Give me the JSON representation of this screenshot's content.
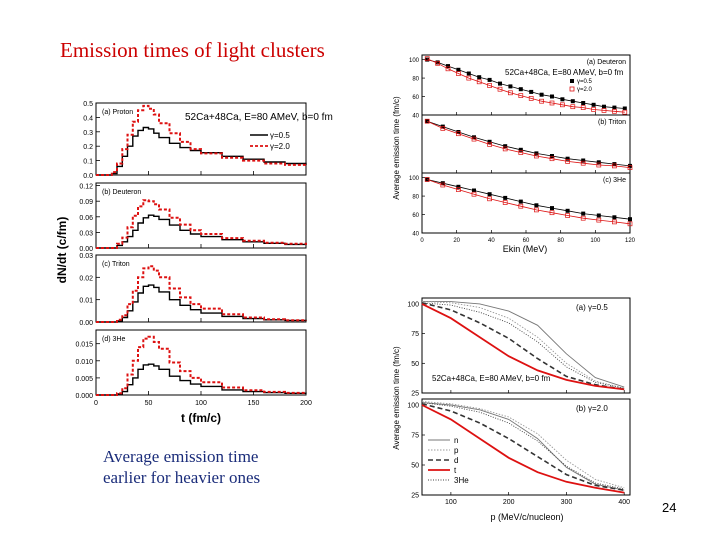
{
  "slide": {
    "title": "Emission times of light clusters",
    "caption_line1": "Average emission time",
    "caption_line2": "earlier for heavier ones",
    "page_number": "24"
  },
  "colors": {
    "title": "#cc0000",
    "caption": "#1a2c7a",
    "red": "#dd1111",
    "black": "#000000"
  },
  "chart_data": [
    {
      "type": "line",
      "title": "52Ca+48Ca, E=80 AMeV, b=0 fm",
      "xlabel": "t (fm/c)",
      "ylabel": "dN/dt (c/fm)",
      "legend": [
        "γ=0.5",
        "γ=2.0"
      ],
      "xlim": [
        0,
        200
      ],
      "x_ticks": [
        "0",
        "50",
        "100",
        "150",
        "200"
      ],
      "panels": [
        {
          "label": "(a) Proton",
          "ylim": [
            0,
            0.5
          ],
          "y_ticks": [
            "0.0",
            "0.1",
            "0.2",
            "0.3",
            "0.4",
            "0.5"
          ],
          "x": [
            0,
            10,
            15,
            20,
            25,
            30,
            35,
            40,
            45,
            50,
            55,
            60,
            70,
            80,
            90,
            100,
            120,
            140,
            160,
            180,
            200
          ],
          "series": [
            {
              "name": "γ=0.5",
              "values": [
                0,
                0,
                0.01,
                0.06,
                0.13,
                0.2,
                0.27,
                0.31,
                0.33,
                0.32,
                0.29,
                0.26,
                0.22,
                0.19,
                0.17,
                0.155,
                0.13,
                0.11,
                0.09,
                0.08,
                0.07
              ]
            },
            {
              "name": "γ=2.0",
              "values": [
                0,
                0,
                0.02,
                0.08,
                0.18,
                0.28,
                0.37,
                0.45,
                0.48,
                0.46,
                0.42,
                0.36,
                0.29,
                0.23,
                0.18,
                0.15,
                0.12,
                0.1,
                0.08,
                0.07,
                0.06
              ]
            }
          ]
        },
        {
          "label": "(b) Deuteron",
          "ylim": [
            0,
            0.125
          ],
          "y_ticks": [
            "0.00",
            "0.03",
            "0.06",
            "0.09",
            "0.12"
          ],
          "x": [
            0,
            10,
            15,
            20,
            25,
            30,
            35,
            40,
            45,
            50,
            55,
            60,
            70,
            80,
            90,
            100,
            120,
            140,
            160,
            180,
            200
          ],
          "series": [
            {
              "name": "γ=0.5",
              "values": [
                0,
                0,
                0,
                0.005,
                0.012,
                0.022,
                0.034,
                0.048,
                0.058,
                0.063,
                0.061,
                0.055,
                0.044,
                0.034,
                0.027,
                0.022,
                0.016,
                0.012,
                0.009,
                0.007,
                0.006
              ]
            },
            {
              "name": "γ=2.0",
              "values": [
                0,
                0,
                0,
                0.008,
                0.02,
                0.04,
                0.062,
                0.08,
                0.092,
                0.09,
                0.084,
                0.074,
                0.058,
                0.045,
                0.034,
                0.027,
                0.019,
                0.014,
                0.01,
                0.008,
                0.006
              ]
            }
          ]
        },
        {
          "label": "(c) Triton",
          "ylim": [
            0,
            0.03
          ],
          "y_ticks": [
            "0.00",
            "0.01",
            "0.02",
            "0.03"
          ],
          "x": [
            0,
            10,
            15,
            20,
            25,
            30,
            35,
            40,
            45,
            50,
            55,
            60,
            70,
            80,
            90,
            100,
            120,
            140,
            160,
            180,
            200
          ],
          "series": [
            {
              "name": "γ=0.5",
              "values": [
                0,
                0,
                0,
                0.0005,
                0.002,
                0.005,
                0.009,
                0.013,
                0.016,
                0.0165,
                0.0155,
                0.0135,
                0.01,
                0.0075,
                0.0055,
                0.004,
                0.0025,
                0.0015,
                0.001,
                0.0007,
                0.0005
              ]
            },
            {
              "name": "γ=2.0",
              "values": [
                0,
                0,
                0,
                0.001,
                0.003,
                0.008,
                0.014,
                0.02,
                0.024,
                0.025,
                0.023,
                0.02,
                0.015,
                0.011,
                0.008,
                0.006,
                0.0035,
                0.002,
                0.0012,
                0.0008,
                0.0006
              ]
            }
          ]
        },
        {
          "label": "(d) 3He",
          "ylim": [
            0,
            0.019
          ],
          "y_ticks": [
            "0.000",
            "0.005",
            "0.010",
            "0.015"
          ],
          "x": [
            0,
            10,
            15,
            20,
            25,
            30,
            35,
            40,
            45,
            50,
            55,
            60,
            70,
            80,
            90,
            100,
            120,
            140,
            160,
            180,
            200
          ],
          "series": [
            {
              "name": "γ=0.5",
              "values": [
                0,
                0,
                0,
                0.0003,
                0.001,
                0.003,
                0.005,
                0.0075,
                0.0088,
                0.009,
                0.0085,
                0.0075,
                0.0055,
                0.0042,
                0.0032,
                0.0025,
                0.0015,
                0.001,
                0.0007,
                0.0005,
                0.0004
              ]
            },
            {
              "name": "γ=2.0",
              "values": [
                0,
                0,
                0,
                0.0005,
                0.002,
                0.006,
                0.01,
                0.014,
                0.0165,
                0.017,
                0.0155,
                0.0135,
                0.0095,
                0.007,
                0.005,
                0.0037,
                0.0022,
                0.0014,
                0.0009,
                0.0006,
                0.0005
              ]
            }
          ]
        }
      ]
    },
    {
      "type": "scatter",
      "title": "52Ca+48Ca, E=80 AMeV, b=0 fm",
      "xlabel": "Ekin (MeV)",
      "ylabel": "Average emission time (fm/c)",
      "xlim": [
        0,
        120
      ],
      "x_ticks": [
        "0",
        "20",
        "40",
        "60",
        "80",
        "100",
        "120"
      ],
      "legend": [
        "γ=0.5",
        "γ=2.0"
      ],
      "panels": [
        {
          "label": "(a) Deuteron",
          "ylim": [
            40,
            105
          ],
          "y_ticks": [
            "40",
            "60",
            "80",
            "100"
          ],
          "series": [
            {
              "name": "γ=0.5",
              "x": [
                3,
                9,
                15,
                21,
                27,
                33,
                39,
                45,
                51,
                57,
                63,
                69,
                75,
                81,
                87,
                93,
                99,
                105,
                111,
                117
              ],
              "values": [
                100,
                97,
                93,
                89,
                85,
                81,
                78,
                74,
                71,
                68,
                65,
                62,
                60,
                57,
                55,
                53,
                51,
                49,
                48,
                47
              ]
            },
            {
              "name": "γ=2.0",
              "x": [
                3,
                9,
                15,
                21,
                27,
                33,
                39,
                45,
                51,
                57,
                63,
                69,
                75,
                81,
                87,
                93,
                99,
                105,
                111,
                117
              ],
              "values": [
                101,
                96,
                90,
                85,
                80,
                76,
                72,
                68,
                64,
                61,
                58,
                55,
                53,
                51,
                49,
                48,
                46,
                45,
                44,
                43
              ]
            }
          ]
        },
        {
          "label": "(b) Triton",
          "ylim": [
            40,
            105
          ],
          "y_ticks": [],
          "series": [
            {
              "name": "γ=0.5",
              "x": [
                3,
                12,
                21,
                30,
                39,
                48,
                57,
                66,
                75,
                84,
                93,
                102,
                111,
                120
              ],
              "values": [
                98,
                92,
                86,
                80,
                75,
                70,
                66,
                62,
                59,
                56,
                54,
                52,
                50,
                48
              ]
            },
            {
              "name": "γ=2.0",
              "x": [
                3,
                12,
                21,
                30,
                39,
                48,
                57,
                66,
                75,
                84,
                93,
                102,
                111,
                120
              ],
              "values": [
                98,
                90,
                84,
                78,
                72,
                67,
                63,
                59,
                56,
                53,
                51,
                49,
                48,
                46
              ]
            }
          ]
        },
        {
          "label": "(c) 3He",
          "ylim": [
            40,
            105
          ],
          "y_ticks": [
            "40",
            "60",
            "80",
            "100"
          ],
          "series": [
            {
              "name": "γ=0.5",
              "x": [
                3,
                12,
                21,
                30,
                39,
                48,
                57,
                66,
                75,
                84,
                93,
                102,
                111,
                120
              ],
              "values": [
                98,
                94,
                90,
                86,
                82,
                78,
                74,
                70,
                67,
                64,
                61,
                59,
                57,
                55
              ]
            },
            {
              "name": "γ=2.0",
              "x": [
                3,
                12,
                21,
                30,
                39,
                48,
                57,
                66,
                75,
                84,
                93,
                102,
                111,
                120
              ],
              "values": [
                98,
                92,
                87,
                82,
                77,
                73,
                69,
                65,
                62,
                59,
                56,
                54,
                52,
                50
              ]
            }
          ]
        }
      ]
    },
    {
      "type": "line",
      "title": "52Ca+48Ca, E=80 AMeV, b=0 fm",
      "xlabel": "p (MeV/c/nucleon)",
      "ylabel": "Average emission time (fm/c)",
      "xlim": [
        50,
        410
      ],
      "x_ticks": [
        "100",
        "200",
        "300",
        "400"
      ],
      "legend": [
        "n",
        "p",
        "d",
        "t",
        "3He"
      ],
      "panels": [
        {
          "label": "(a) γ=0.5",
          "ylim": [
            25,
            105
          ],
          "y_ticks": [
            "100",
            "75",
            "50",
            "25"
          ],
          "x": [
            50,
            100,
            150,
            200,
            250,
            300,
            350,
            400
          ],
          "series": [
            {
              "name": "n",
              "values": [
                102,
                102,
                100,
                94,
                82,
                58,
                38,
                30
              ]
            },
            {
              "name": "p",
              "values": [
                102,
                101,
                97,
                88,
                72,
                50,
                35,
                29
              ]
            },
            {
              "name": "d",
              "values": [
                101,
                95,
                84,
                71,
                54,
                39,
                32,
                28
              ]
            },
            {
              "name": "t",
              "values": [
                100,
                88,
                72,
                56,
                44,
                36,
                31,
                28
              ]
            },
            {
              "name": "3He",
              "values": [
                101,
                99,
                93,
                84,
                68,
                47,
                34,
                29
              ]
            }
          ]
        },
        {
          "label": "(b) γ=2.0",
          "ylim": [
            25,
            105
          ],
          "y_ticks": [
            "100",
            "75",
            "50",
            "25"
          ],
          "x": [
            50,
            100,
            150,
            200,
            250,
            300,
            350,
            400
          ],
          "series": [
            {
              "name": "n",
              "values": [
                102,
                100,
                96,
                88,
                72,
                48,
                34,
                29
              ]
            },
            {
              "name": "p",
              "values": [
                103,
                101,
                97,
                90,
                76,
                54,
                38,
                31
              ]
            },
            {
              "name": "d",
              "values": [
                101,
                95,
                85,
                72,
                57,
                42,
                33,
                29
              ]
            },
            {
              "name": "t",
              "values": [
                100,
                88,
                72,
                56,
                44,
                36,
                31,
                27
              ]
            },
            {
              "name": "3He",
              "values": [
                102,
                99,
                94,
                85,
                70,
                49,
                35,
                30
              ]
            }
          ]
        }
      ]
    }
  ]
}
